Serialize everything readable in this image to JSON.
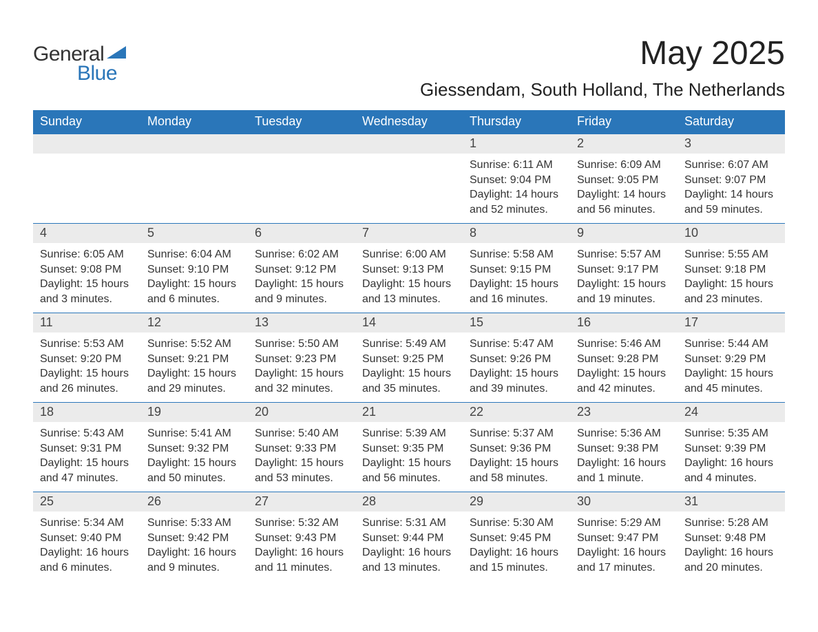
{
  "logo": {
    "text_general": "General",
    "text_blue": "Blue",
    "accent_color": "#2a76b9"
  },
  "title": "May 2025",
  "location": "Giessendam, South Holland, The Netherlands",
  "header_bg": "#2a76b9",
  "daybar_bg": "#ebebeb",
  "weekdays": [
    "Sunday",
    "Monday",
    "Tuesday",
    "Wednesday",
    "Thursday",
    "Friday",
    "Saturday"
  ],
  "weeks": [
    [
      {
        "empty": true
      },
      {
        "empty": true
      },
      {
        "empty": true
      },
      {
        "empty": true
      },
      {
        "day": "1",
        "sunrise": "Sunrise: 6:11 AM",
        "sunset": "Sunset: 9:04 PM",
        "daylight1": "Daylight: 14 hours",
        "daylight2": "and 52 minutes."
      },
      {
        "day": "2",
        "sunrise": "Sunrise: 6:09 AM",
        "sunset": "Sunset: 9:05 PM",
        "daylight1": "Daylight: 14 hours",
        "daylight2": "and 56 minutes."
      },
      {
        "day": "3",
        "sunrise": "Sunrise: 6:07 AM",
        "sunset": "Sunset: 9:07 PM",
        "daylight1": "Daylight: 14 hours",
        "daylight2": "and 59 minutes."
      }
    ],
    [
      {
        "day": "4",
        "sunrise": "Sunrise: 6:05 AM",
        "sunset": "Sunset: 9:08 PM",
        "daylight1": "Daylight: 15 hours",
        "daylight2": "and 3 minutes."
      },
      {
        "day": "5",
        "sunrise": "Sunrise: 6:04 AM",
        "sunset": "Sunset: 9:10 PM",
        "daylight1": "Daylight: 15 hours",
        "daylight2": "and 6 minutes."
      },
      {
        "day": "6",
        "sunrise": "Sunrise: 6:02 AM",
        "sunset": "Sunset: 9:12 PM",
        "daylight1": "Daylight: 15 hours",
        "daylight2": "and 9 minutes."
      },
      {
        "day": "7",
        "sunrise": "Sunrise: 6:00 AM",
        "sunset": "Sunset: 9:13 PM",
        "daylight1": "Daylight: 15 hours",
        "daylight2": "and 13 minutes."
      },
      {
        "day": "8",
        "sunrise": "Sunrise: 5:58 AM",
        "sunset": "Sunset: 9:15 PM",
        "daylight1": "Daylight: 15 hours",
        "daylight2": "and 16 minutes."
      },
      {
        "day": "9",
        "sunrise": "Sunrise: 5:57 AM",
        "sunset": "Sunset: 9:17 PM",
        "daylight1": "Daylight: 15 hours",
        "daylight2": "and 19 minutes."
      },
      {
        "day": "10",
        "sunrise": "Sunrise: 5:55 AM",
        "sunset": "Sunset: 9:18 PM",
        "daylight1": "Daylight: 15 hours",
        "daylight2": "and 23 minutes."
      }
    ],
    [
      {
        "day": "11",
        "sunrise": "Sunrise: 5:53 AM",
        "sunset": "Sunset: 9:20 PM",
        "daylight1": "Daylight: 15 hours",
        "daylight2": "and 26 minutes."
      },
      {
        "day": "12",
        "sunrise": "Sunrise: 5:52 AM",
        "sunset": "Sunset: 9:21 PM",
        "daylight1": "Daylight: 15 hours",
        "daylight2": "and 29 minutes."
      },
      {
        "day": "13",
        "sunrise": "Sunrise: 5:50 AM",
        "sunset": "Sunset: 9:23 PM",
        "daylight1": "Daylight: 15 hours",
        "daylight2": "and 32 minutes."
      },
      {
        "day": "14",
        "sunrise": "Sunrise: 5:49 AM",
        "sunset": "Sunset: 9:25 PM",
        "daylight1": "Daylight: 15 hours",
        "daylight2": "and 35 minutes."
      },
      {
        "day": "15",
        "sunrise": "Sunrise: 5:47 AM",
        "sunset": "Sunset: 9:26 PM",
        "daylight1": "Daylight: 15 hours",
        "daylight2": "and 39 minutes."
      },
      {
        "day": "16",
        "sunrise": "Sunrise: 5:46 AM",
        "sunset": "Sunset: 9:28 PM",
        "daylight1": "Daylight: 15 hours",
        "daylight2": "and 42 minutes."
      },
      {
        "day": "17",
        "sunrise": "Sunrise: 5:44 AM",
        "sunset": "Sunset: 9:29 PM",
        "daylight1": "Daylight: 15 hours",
        "daylight2": "and 45 minutes."
      }
    ],
    [
      {
        "day": "18",
        "sunrise": "Sunrise: 5:43 AM",
        "sunset": "Sunset: 9:31 PM",
        "daylight1": "Daylight: 15 hours",
        "daylight2": "and 47 minutes."
      },
      {
        "day": "19",
        "sunrise": "Sunrise: 5:41 AM",
        "sunset": "Sunset: 9:32 PM",
        "daylight1": "Daylight: 15 hours",
        "daylight2": "and 50 minutes."
      },
      {
        "day": "20",
        "sunrise": "Sunrise: 5:40 AM",
        "sunset": "Sunset: 9:33 PM",
        "daylight1": "Daylight: 15 hours",
        "daylight2": "and 53 minutes."
      },
      {
        "day": "21",
        "sunrise": "Sunrise: 5:39 AM",
        "sunset": "Sunset: 9:35 PM",
        "daylight1": "Daylight: 15 hours",
        "daylight2": "and 56 minutes."
      },
      {
        "day": "22",
        "sunrise": "Sunrise: 5:37 AM",
        "sunset": "Sunset: 9:36 PM",
        "daylight1": "Daylight: 15 hours",
        "daylight2": "and 58 minutes."
      },
      {
        "day": "23",
        "sunrise": "Sunrise: 5:36 AM",
        "sunset": "Sunset: 9:38 PM",
        "daylight1": "Daylight: 16 hours",
        "daylight2": "and 1 minute."
      },
      {
        "day": "24",
        "sunrise": "Sunrise: 5:35 AM",
        "sunset": "Sunset: 9:39 PM",
        "daylight1": "Daylight: 16 hours",
        "daylight2": "and 4 minutes."
      }
    ],
    [
      {
        "day": "25",
        "sunrise": "Sunrise: 5:34 AM",
        "sunset": "Sunset: 9:40 PM",
        "daylight1": "Daylight: 16 hours",
        "daylight2": "and 6 minutes."
      },
      {
        "day": "26",
        "sunrise": "Sunrise: 5:33 AM",
        "sunset": "Sunset: 9:42 PM",
        "daylight1": "Daylight: 16 hours",
        "daylight2": "and 9 minutes."
      },
      {
        "day": "27",
        "sunrise": "Sunrise: 5:32 AM",
        "sunset": "Sunset: 9:43 PM",
        "daylight1": "Daylight: 16 hours",
        "daylight2": "and 11 minutes."
      },
      {
        "day": "28",
        "sunrise": "Sunrise: 5:31 AM",
        "sunset": "Sunset: 9:44 PM",
        "daylight1": "Daylight: 16 hours",
        "daylight2": "and 13 minutes."
      },
      {
        "day": "29",
        "sunrise": "Sunrise: 5:30 AM",
        "sunset": "Sunset: 9:45 PM",
        "daylight1": "Daylight: 16 hours",
        "daylight2": "and 15 minutes."
      },
      {
        "day": "30",
        "sunrise": "Sunrise: 5:29 AM",
        "sunset": "Sunset: 9:47 PM",
        "daylight1": "Daylight: 16 hours",
        "daylight2": "and 17 minutes."
      },
      {
        "day": "31",
        "sunrise": "Sunrise: 5:28 AM",
        "sunset": "Sunset: 9:48 PM",
        "daylight1": "Daylight: 16 hours",
        "daylight2": "and 20 minutes."
      }
    ]
  ]
}
